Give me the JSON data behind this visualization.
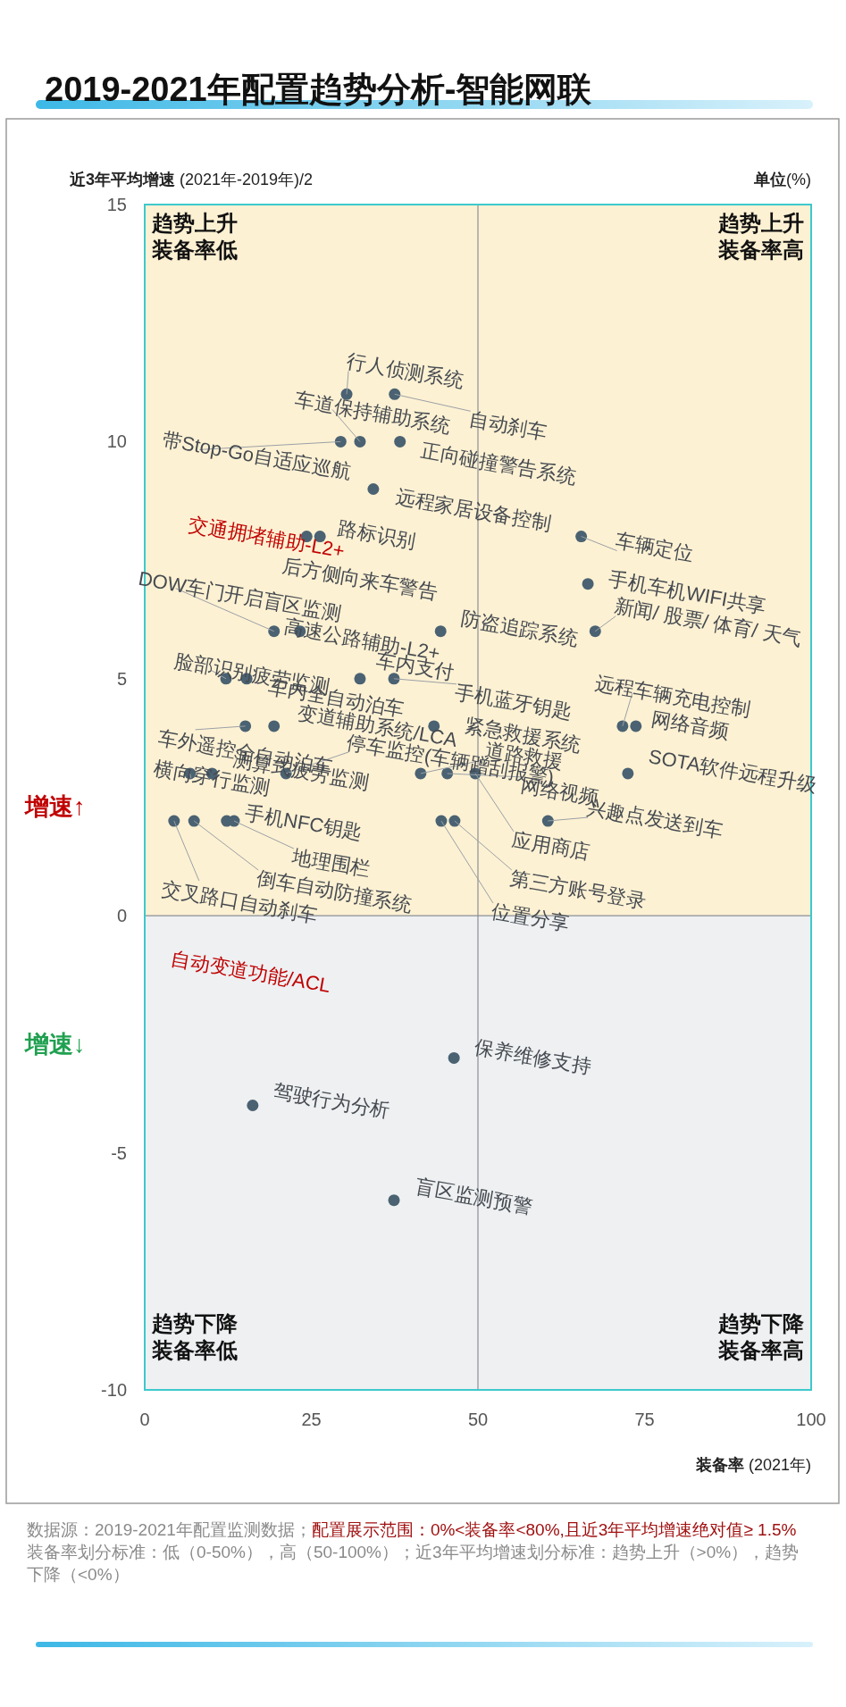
{
  "chart_data": {
    "type": "scatter",
    "title": "2019-2021年配置趋势分析-智能网联",
    "xlabel": "**装备率** (2021年)",
    "ylabel": "**近3年平均增速** (2021年-2019年)/2",
    "x": [
      30.3,
      37.5,
      29.4,
      32.3,
      38.3,
      34.3,
      24.3,
      26.3,
      19.4,
      23.3,
      44.4,
      12.2,
      15.3,
      32.3,
      37.4,
      15.1,
      19.4,
      43.4,
      6.8,
      10.1,
      21.2,
      41.4,
      45.4,
      49.6,
      4.4,
      7.4,
      12.3,
      13.4,
      44.5,
      46.5,
      65.5,
      66.5,
      67.6,
      71.7,
      73.7,
      72.5,
      60.5,
      46.4,
      16.2,
      37.4
    ],
    "values": [
      11,
      11,
      10,
      10,
      10,
      9,
      8,
      8,
      6,
      6,
      6,
      5,
      5,
      5,
      5,
      4,
      4,
      4,
      3,
      3,
      3,
      3,
      3,
      3,
      2,
      2,
      2,
      2,
      2,
      2,
      8,
      7,
      6,
      4,
      4,
      3,
      2,
      -3,
      -4,
      -6
    ],
    "color": "#4a6272",
    "marker": "circle",
    "xlim": [
      0,
      100
    ],
    "ylim": [
      -10,
      15
    ],
    "xticks": [
      0,
      25,
      50,
      75,
      100
    ],
    "yticks": [
      -10,
      -5,
      0,
      5,
      10,
      15
    ],
    "ref_lines": [
      {
        "axis": "x",
        "value": 50,
        "color": "#8a8f96"
      },
      {
        "axis": "y",
        "value": 0,
        "color": "#8a8f96"
      }
    ],
    "bands": [
      {
        "axis": "y",
        "from": 0,
        "to": 15,
        "color": "#fdf1d3"
      },
      {
        "axis": "y",
        "from": -10,
        "to": 0,
        "color": "#eef0f2"
      }
    ],
    "annotations": [
      "趋势上升",
      "装备率低",
      "趋势上升",
      "装备率高",
      "趋势下降",
      "装备率低",
      "趋势下降",
      "装备率高",
      "增速↑",
      "增速↓",
      "**单位**(%)",
      "交通拥堵辅助-L2+",
      "自动变道功能/ACL",
      "数据源：2019-2021年配置监测数据；",
      "配置展示范围：0%<装备率<80%,且近3年平均增速绝对值≥ 1.5%",
      "装备率划分标准：低（0-50%），高（50-100%）；近3年平均增速划分标准：趋势上升（>0%），趋势下降（<0%）",
      {
        "text": "行人侦测系统",
        "x": 30.3,
        "y": 11
      },
      {
        "text": "自动刹车",
        "x": 37.5,
        "y": 11
      },
      {
        "text": "带Stop-Go自适应巡航",
        "x": 29.4,
        "y": 10
      },
      {
        "text": "车道保持辅助系统",
        "x": 32.3,
        "y": 10
      },
      {
        "text": "正向碰撞警告系统",
        "x": 38.3,
        "y": 10
      },
      {
        "text": "远程家居设备控制",
        "x": 34.3,
        "y": 9
      },
      {
        "text": "后方侧向来车警告",
        "x": 24.3,
        "y": 8
      },
      {
        "text": "路标识别",
        "x": 26.3,
        "y": 8
      },
      {
        "text": "DOW车门开启盲区监测",
        "x": 19.4,
        "y": 6
      },
      {
        "text": "高速公路辅助-L2+",
        "x": 23.3,
        "y": 6
      },
      {
        "text": "防盗追踪系统",
        "x": 44.4,
        "y": 6
      },
      {
        "text": "脸部识别疲劳监测",
        "x": 12.2,
        "y": 5
      },
      {
        "text": "车内全自动泊车",
        "x": 15.3,
        "y": 5
      },
      {
        "text": "车内支付",
        "x": 32.3,
        "y": 5
      },
      {
        "text": "手机蓝牙钥匙",
        "x": 37.4,
        "y": 5
      },
      {
        "text": "车外遥控全自动泊车",
        "x": 15.1,
        "y": 4
      },
      {
        "text": "变道辅助系统/LCA",
        "x": 19.4,
        "y": 4
      },
      {
        "text": "紧急救援系统",
        "x": 43.4,
        "y": 4
      },
      {
        "text": "横向穿行监测",
        "x": 6.8,
        "y": 3
      },
      {
        "text": "测算式疲劳监测",
        "x": 10.1,
        "y": 3
      },
      {
        "text": "停车监控(车辆蹭刮报警)",
        "x": 21.2,
        "y": 3
      },
      {
        "text": "道路救援",
        "x": 41.4,
        "y": 3
      },
      {
        "text": "网络视频",
        "x": 45.4,
        "y": 3
      },
      {
        "text": "应用商店",
        "x": 49.6,
        "y": 3
      },
      {
        "text": "交叉路口自动刹车",
        "x": 4.4,
        "y": 2
      },
      {
        "text": "倒车自动防撞系统",
        "x": 7.4,
        "y": 2
      },
      {
        "text": "手机NFC钥匙",
        "x": 12.3,
        "y": 2
      },
      {
        "text": "地理围栏",
        "x": 13.4,
        "y": 2
      },
      {
        "text": "位置分享",
        "x": 44.5,
        "y": 2
      },
      {
        "text": "第三方账号登录",
        "x": 46.5,
        "y": 2
      },
      {
        "text": "车辆定位",
        "x": 65.5,
        "y": 8
      },
      {
        "text": "手机车机WIFI共享",
        "x": 66.5,
        "y": 7
      },
      {
        "text": "新闻/ 股票/ 体育/ 天气",
        "x": 67.6,
        "y": 6
      },
      {
        "text": "远程车辆充电控制",
        "x": 71.7,
        "y": 4
      },
      {
        "text": "网络音频",
        "x": 73.7,
        "y": 4
      },
      {
        "text": "SOTA软件远程升级",
        "x": 72.5,
        "y": 3
      },
      {
        "text": "兴趣点发送到车",
        "x": 60.5,
        "y": 2
      },
      {
        "text": "保养维修支持",
        "x": 46.4,
        "y": -3
      },
      {
        "text": "驾驶行为分析",
        "x": 16.2,
        "y": -4
      },
      {
        "text": "盲区监测预警",
        "x": 37.4,
        "y": -6
      }
    ]
  }
}
